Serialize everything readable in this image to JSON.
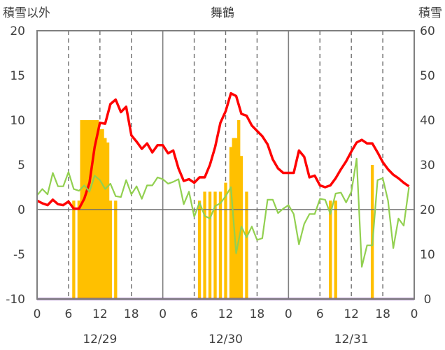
{
  "chart_data": {
    "type": "bar+line",
    "title": "舞鶴",
    "ylabel_left": "積雪以外",
    "ylabel_right": "積雪",
    "y_left": {
      "min": -10,
      "max": 20,
      "ticks": [
        "-10",
        "-5",
        "0",
        "5",
        "10",
        "15",
        "20"
      ]
    },
    "y_right": {
      "min": 0,
      "max": 60,
      "ticks": [
        "0",
        "10",
        "20",
        "30",
        "40",
        "50",
        "60"
      ]
    },
    "x_hours": {
      "min": 0,
      "max": 72
    },
    "x_tick_labels": [
      "0",
      "6",
      "12",
      "18",
      "0",
      "6",
      "12",
      "18",
      "0",
      "6",
      "12",
      "18",
      "0"
    ],
    "date_labels": [
      "12/29",
      "12/30",
      "12/31"
    ],
    "grid": "dashed vertical lines at 06, 12 and 18 o'clock; solid lines at midnight; horizontal line at 0",
    "series": [
      {
        "kind": "bar",
        "axis": "right",
        "color": "#FFC000",
        "values": [
          [
            7,
            22
          ],
          [
            8,
            22
          ],
          [
            8.5,
            40
          ],
          [
            9,
            40
          ],
          [
            9.5,
            40
          ],
          [
            10,
            40
          ],
          [
            10.5,
            40
          ],
          [
            11,
            40
          ],
          [
            11.5,
            40
          ],
          [
            12,
            38
          ],
          [
            12.5,
            38
          ],
          [
            13,
            36
          ],
          [
            13.5,
            35
          ],
          [
            14,
            22
          ],
          [
            15,
            22
          ],
          [
            31,
            22
          ],
          [
            32,
            24
          ],
          [
            33,
            24
          ],
          [
            34,
            24
          ],
          [
            35,
            24
          ],
          [
            36,
            26
          ],
          [
            37,
            34
          ],
          [
            37.5,
            36
          ],
          [
            38,
            36
          ],
          [
            38.5,
            40
          ],
          [
            39,
            32
          ],
          [
            40,
            24
          ],
          [
            56,
            22
          ],
          [
            57,
            22
          ],
          [
            64,
            30
          ]
        ]
      },
      {
        "kind": "line",
        "axis": "left",
        "color": "#FF0000",
        "points": [
          [
            0,
            1.0
          ],
          [
            1,
            0.7
          ],
          [
            2,
            0.5
          ],
          [
            3,
            1.1
          ],
          [
            4,
            0.6
          ],
          [
            5,
            0.5
          ],
          [
            6,
            0.9
          ],
          [
            7,
            0.1
          ],
          [
            8,
            0.1
          ],
          [
            9,
            1.2
          ],
          [
            10,
            3.0
          ],
          [
            11,
            7.0
          ],
          [
            12,
            9.7
          ],
          [
            13,
            9.6
          ],
          [
            14,
            11.8
          ],
          [
            15,
            12.3
          ],
          [
            16,
            10.9
          ],
          [
            17,
            11.5
          ],
          [
            18,
            8.3
          ],
          [
            19,
            7.6
          ],
          [
            20,
            6.8
          ],
          [
            21,
            7.4
          ],
          [
            22,
            6.4
          ],
          [
            23,
            7.2
          ],
          [
            24,
            7.2
          ],
          [
            25,
            6.3
          ],
          [
            26,
            6.6
          ],
          [
            27,
            4.6
          ],
          [
            28,
            3.2
          ],
          [
            29,
            3.4
          ],
          [
            30,
            3.0
          ],
          [
            31,
            3.6
          ],
          [
            32,
            3.6
          ],
          [
            33,
            5.0
          ],
          [
            34,
            7.0
          ],
          [
            35,
            9.7
          ],
          [
            36,
            11.0
          ],
          [
            37,
            13.0
          ],
          [
            38,
            12.7
          ],
          [
            39,
            10.7
          ],
          [
            40,
            10.5
          ],
          [
            41,
            9.4
          ],
          [
            42,
            8.8
          ],
          [
            43,
            8.2
          ],
          [
            44,
            7.3
          ],
          [
            45,
            5.6
          ],
          [
            46,
            4.6
          ],
          [
            47,
            4.1
          ],
          [
            48,
            4.1
          ],
          [
            49,
            4.1
          ],
          [
            50,
            6.6
          ],
          [
            51,
            5.9
          ],
          [
            52,
            3.6
          ],
          [
            53,
            3.8
          ],
          [
            54,
            2.7
          ],
          [
            55,
            2.5
          ],
          [
            56,
            2.7
          ],
          [
            57,
            3.5
          ],
          [
            58,
            4.5
          ],
          [
            59,
            5.4
          ],
          [
            60,
            6.5
          ],
          [
            61,
            7.5
          ],
          [
            62,
            7.8
          ],
          [
            63,
            7.4
          ],
          [
            64,
            7.4
          ],
          [
            65,
            6.4
          ],
          [
            66,
            5.3
          ],
          [
            67,
            4.5
          ],
          [
            68,
            3.9
          ],
          [
            69,
            3.5
          ],
          [
            70,
            3.0
          ],
          [
            71,
            2.6
          ]
        ]
      },
      {
        "kind": "line",
        "axis": "left",
        "color": "#92D050",
        "points": [
          [
            0,
            1.6
          ],
          [
            1,
            2.3
          ],
          [
            2,
            1.7
          ],
          [
            3,
            4.1
          ],
          [
            4,
            2.6
          ],
          [
            5,
            2.6
          ],
          [
            6,
            4.2
          ],
          [
            7,
            2.3
          ],
          [
            8,
            2.1
          ],
          [
            9,
            2.7
          ],
          [
            10,
            2.0
          ],
          [
            11,
            3.8
          ],
          [
            12,
            3.3
          ],
          [
            13,
            2.3
          ],
          [
            14,
            2.9
          ],
          [
            15,
            1.5
          ],
          [
            16,
            1.4
          ],
          [
            17,
            3.3
          ],
          [
            18,
            1.7
          ],
          [
            19,
            2.6
          ],
          [
            20,
            1.2
          ],
          [
            21,
            2.7
          ],
          [
            22,
            2.7
          ],
          [
            23,
            3.6
          ],
          [
            24,
            3.4
          ],
          [
            25,
            2.9
          ],
          [
            26,
            3.1
          ],
          [
            27,
            3.4
          ],
          [
            28,
            0.6
          ],
          [
            29,
            2.0
          ],
          [
            30,
            -0.8
          ],
          [
            31,
            0.8
          ],
          [
            32,
            -0.7
          ],
          [
            33,
            -1.0
          ],
          [
            34,
            0.4
          ],
          [
            35,
            0.7
          ],
          [
            36,
            1.5
          ],
          [
            37,
            2.5
          ],
          [
            38,
            -4.9
          ],
          [
            39,
            -1.9
          ],
          [
            40,
            -3.1
          ],
          [
            41,
            -1.9
          ],
          [
            42,
            -3.4
          ],
          [
            43,
            -3.2
          ],
          [
            44,
            1.1
          ],
          [
            45,
            1.1
          ],
          [
            46,
            -0.4
          ],
          [
            47,
            0.1
          ],
          [
            48,
            0.5
          ],
          [
            49,
            -0.5
          ],
          [
            50,
            -3.9
          ],
          [
            51,
            -1.6
          ],
          [
            52,
            -0.5
          ],
          [
            53,
            -0.5
          ],
          [
            54,
            1.2
          ],
          [
            55,
            1.1
          ],
          [
            56,
            -0.5
          ],
          [
            57,
            1.8
          ],
          [
            58,
            1.9
          ],
          [
            59,
            0.8
          ],
          [
            60,
            2.0
          ],
          [
            61,
            5.7
          ],
          [
            62,
            -6.4
          ],
          [
            63,
            -4.0
          ],
          [
            64,
            -4.0
          ],
          [
            65,
            3.3
          ],
          [
            66,
            3.5
          ],
          [
            67,
            1.0
          ],
          [
            68,
            -4.3
          ],
          [
            69,
            -1.0
          ],
          [
            70,
            -1.8
          ],
          [
            71,
            2.5
          ]
        ]
      },
      {
        "kind": "line",
        "axis": "left",
        "color": "#7030A0",
        "points": [
          [
            0,
            -10
          ],
          [
            72,
            -10
          ]
        ]
      }
    ]
  }
}
